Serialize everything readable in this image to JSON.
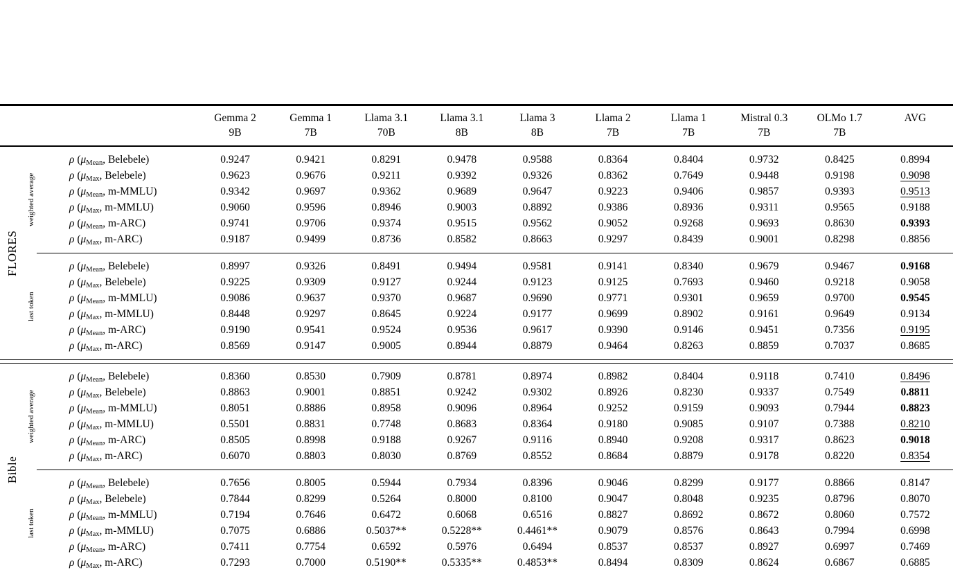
{
  "colors": {
    "text": "#000000",
    "background": "#ffffff",
    "rule": "#000000"
  },
  "table": {
    "label_format": {
      "rho": "ρ",
      "open": " (",
      "mu": "μ",
      "comma": ", ",
      "close": ")"
    },
    "model_columns": [
      {
        "line1": "Gemma 2",
        "line2": "9B"
      },
      {
        "line1": "Gemma 1",
        "line2": "7B"
      },
      {
        "line1": "Llama 3.1",
        "line2": "70B"
      },
      {
        "line1": "Llama 3.1",
        "line2": "8B"
      },
      {
        "line1": "Llama 3",
        "line2": "8B"
      },
      {
        "line1": "Llama 2",
        "line2": "7B"
      },
      {
        "line1": "Llama 1",
        "line2": "7B"
      },
      {
        "line1": "Mistral 0.3",
        "line2": "7B"
      },
      {
        "line1": "OLMo 1.7",
        "line2": "7B"
      },
      {
        "line1": "AVG",
        "line2": ""
      }
    ],
    "sections": [
      {
        "name": "FLORES",
        "subsections": [
          {
            "name": "weighted average",
            "rows": [
              {
                "mu_sub": "Mean",
                "benchmark": "Belebele",
                "values": [
                  "0.9247",
                  "0.9421",
                  "0.8291",
                  "0.9478",
                  "0.9588",
                  "0.8364",
                  "0.8404",
                  "0.9732",
                  "0.8425"
                ],
                "avg": "0.8994",
                "avg_style": "plain"
              },
              {
                "mu_sub": "Max",
                "benchmark": "Belebele",
                "values": [
                  "0.9623",
                  "0.9676",
                  "0.9211",
                  "0.9392",
                  "0.9326",
                  "0.8362",
                  "0.7649",
                  "0.9448",
                  "0.9198"
                ],
                "avg": "0.9098",
                "avg_style": "underline"
              },
              {
                "mu_sub": "Mean",
                "benchmark": "m-MMLU",
                "values": [
                  "0.9342",
                  "0.9697",
                  "0.9362",
                  "0.9689",
                  "0.9647",
                  "0.9223",
                  "0.9406",
                  "0.9857",
                  "0.9393"
                ],
                "avg": "0.9513",
                "avg_style": "underline"
              },
              {
                "mu_sub": "Max",
                "benchmark": "m-MMLU",
                "values": [
                  "0.9060",
                  "0.9596",
                  "0.8946",
                  "0.9003",
                  "0.8892",
                  "0.9386",
                  "0.8936",
                  "0.9311",
                  "0.9565"
                ],
                "avg": "0.9188",
                "avg_style": "plain"
              },
              {
                "mu_sub": "Mean",
                "benchmark": "m-ARC",
                "values": [
                  "0.9741",
                  "0.9706",
                  "0.9374",
                  "0.9515",
                  "0.9562",
                  "0.9052",
                  "0.9268",
                  "0.9693",
                  "0.8630"
                ],
                "avg": "0.9393",
                "avg_style": "bold"
              },
              {
                "mu_sub": "Max",
                "benchmark": "m-ARC",
                "values": [
                  "0.9187",
                  "0.9499",
                  "0.8736",
                  "0.8582",
                  "0.8663",
                  "0.9297",
                  "0.8439",
                  "0.9001",
                  "0.8298"
                ],
                "avg": "0.8856",
                "avg_style": "plain"
              }
            ]
          },
          {
            "name": "last token",
            "rows": [
              {
                "mu_sub": "Mean",
                "benchmark": "Belebele",
                "values": [
                  "0.8997",
                  "0.9326",
                  "0.8491",
                  "0.9494",
                  "0.9581",
                  "0.9141",
                  "0.8340",
                  "0.9679",
                  "0.9467"
                ],
                "avg": "0.9168",
                "avg_style": "bold"
              },
              {
                "mu_sub": "Max",
                "benchmark": "Belebele",
                "values": [
                  "0.9225",
                  "0.9309",
                  "0.9127",
                  "0.9244",
                  "0.9123",
                  "0.9125",
                  "0.7693",
                  "0.9460",
                  "0.9218"
                ],
                "avg": "0.9058",
                "avg_style": "plain"
              },
              {
                "mu_sub": "Mean",
                "benchmark": "m-MMLU",
                "values": [
                  "0.9086",
                  "0.9637",
                  "0.9370",
                  "0.9687",
                  "0.9690",
                  "0.9771",
                  "0.9301",
                  "0.9659",
                  "0.9700"
                ],
                "avg": "0.9545",
                "avg_style": "bold"
              },
              {
                "mu_sub": "Max",
                "benchmark": "m-MMLU",
                "values": [
                  "0.8448",
                  "0.9297",
                  "0.8645",
                  "0.9224",
                  "0.9177",
                  "0.9699",
                  "0.8902",
                  "0.9161",
                  "0.9649"
                ],
                "avg": "0.9134",
                "avg_style": "plain"
              },
              {
                "mu_sub": "Mean",
                "benchmark": "m-ARC",
                "values": [
                  "0.9190",
                  "0.9541",
                  "0.9524",
                  "0.9536",
                  "0.9617",
                  "0.9390",
                  "0.9146",
                  "0.9451",
                  "0.7356"
                ],
                "avg": "0.9195",
                "avg_style": "underline"
              },
              {
                "mu_sub": "Max",
                "benchmark": "m-ARC",
                "values": [
                  "0.8569",
                  "0.9147",
                  "0.9005",
                  "0.8944",
                  "0.8879",
                  "0.9464",
                  "0.8263",
                  "0.8859",
                  "0.7037"
                ],
                "avg": "0.8685",
                "avg_style": "plain"
              }
            ]
          }
        ]
      },
      {
        "name": "Bible",
        "subsections": [
          {
            "name": "weighted average",
            "rows": [
              {
                "mu_sub": "Mean",
                "benchmark": "Belebele",
                "values": [
                  "0.8360",
                  "0.8530",
                  "0.7909",
                  "0.8781",
                  "0.8974",
                  "0.8982",
                  "0.8404",
                  "0.9118",
                  "0.7410"
                ],
                "avg": "0.8496",
                "avg_style": "underline"
              },
              {
                "mu_sub": "Max",
                "benchmark": "Belebele",
                "values": [
                  "0.8863",
                  "0.9001",
                  "0.8851",
                  "0.9242",
                  "0.9302",
                  "0.8926",
                  "0.8230",
                  "0.9337",
                  "0.7549"
                ],
                "avg": "0.8811",
                "avg_style": "bold"
              },
              {
                "mu_sub": "Mean",
                "benchmark": "m-MMLU",
                "values": [
                  "0.8051",
                  "0.8886",
                  "0.8958",
                  "0.9096",
                  "0.8964",
                  "0.9252",
                  "0.9159",
                  "0.9093",
                  "0.7944"
                ],
                "avg": "0.8823",
                "avg_style": "bold"
              },
              {
                "mu_sub": "Max",
                "benchmark": "m-MMLU",
                "values": [
                  "0.5501",
                  "0.8831",
                  "0.7748",
                  "0.8683",
                  "0.8364",
                  "0.9180",
                  "0.9085",
                  "0.9107",
                  "0.7388"
                ],
                "avg": "0.8210",
                "avg_style": "underline"
              },
              {
                "mu_sub": "Mean",
                "benchmark": "m-ARC",
                "values": [
                  "0.8505",
                  "0.8998",
                  "0.9188",
                  "0.9267",
                  "0.9116",
                  "0.8940",
                  "0.9208",
                  "0.9317",
                  "0.8623"
                ],
                "avg": "0.9018",
                "avg_style": "bold"
              },
              {
                "mu_sub": "Max",
                "benchmark": "m-ARC",
                "values": [
                  "0.6070",
                  "0.8803",
                  "0.8030",
                  "0.8769",
                  "0.8552",
                  "0.8684",
                  "0.8879",
                  "0.9178",
                  "0.8220"
                ],
                "avg": "0.8354",
                "avg_style": "underline"
              }
            ]
          },
          {
            "name": "last token",
            "rows": [
              {
                "mu_sub": "Mean",
                "benchmark": "Belebele",
                "values": [
                  "0.7656",
                  "0.8005",
                  "0.5944",
                  "0.7934",
                  "0.8396",
                  "0.9046",
                  "0.8299",
                  "0.9177",
                  "0.8866"
                ],
                "avg": "0.8147",
                "avg_style": "plain"
              },
              {
                "mu_sub": "Max",
                "benchmark": "Belebele",
                "values": [
                  "0.7844",
                  "0.8299",
                  "0.5264",
                  "0.8000",
                  "0.8100",
                  "0.9047",
                  "0.8048",
                  "0.9235",
                  "0.8796"
                ],
                "avg": "0.8070",
                "avg_style": "plain"
              },
              {
                "mu_sub": "Mean",
                "benchmark": "m-MMLU",
                "values": [
                  "0.7194",
                  "0.7646",
                  "0.6472",
                  "0.6068",
                  "0.6516",
                  "0.8827",
                  "0.8692",
                  "0.8672",
                  "0.8060"
                ],
                "avg": "0.7572",
                "avg_style": "plain"
              },
              {
                "mu_sub": "Max",
                "benchmark": "m-MMLU",
                "values": [
                  "0.7075",
                  "0.6886",
                  "0.5037**",
                  "0.5228**",
                  "0.4461**",
                  "0.9079",
                  "0.8576",
                  "0.8643",
                  "0.7994"
                ],
                "avg": "0.6998",
                "avg_style": "plain"
              },
              {
                "mu_sub": "Mean",
                "benchmark": "m-ARC",
                "values": [
                  "0.7411",
                  "0.7754",
                  "0.6592",
                  "0.5976",
                  "0.6494",
                  "0.8537",
                  "0.8537",
                  "0.8927",
                  "0.6997"
                ],
                "avg": "0.7469",
                "avg_style": "plain"
              },
              {
                "mu_sub": "Max",
                "benchmark": "m-ARC",
                "values": [
                  "0.7293",
                  "0.7000",
                  "0.5190**",
                  "0.5335**",
                  "0.4853**",
                  "0.8494",
                  "0.8309",
                  "0.8624",
                  "0.6867"
                ],
                "avg": "0.6885",
                "avg_style": "plain"
              }
            ]
          }
        ]
      }
    ]
  }
}
